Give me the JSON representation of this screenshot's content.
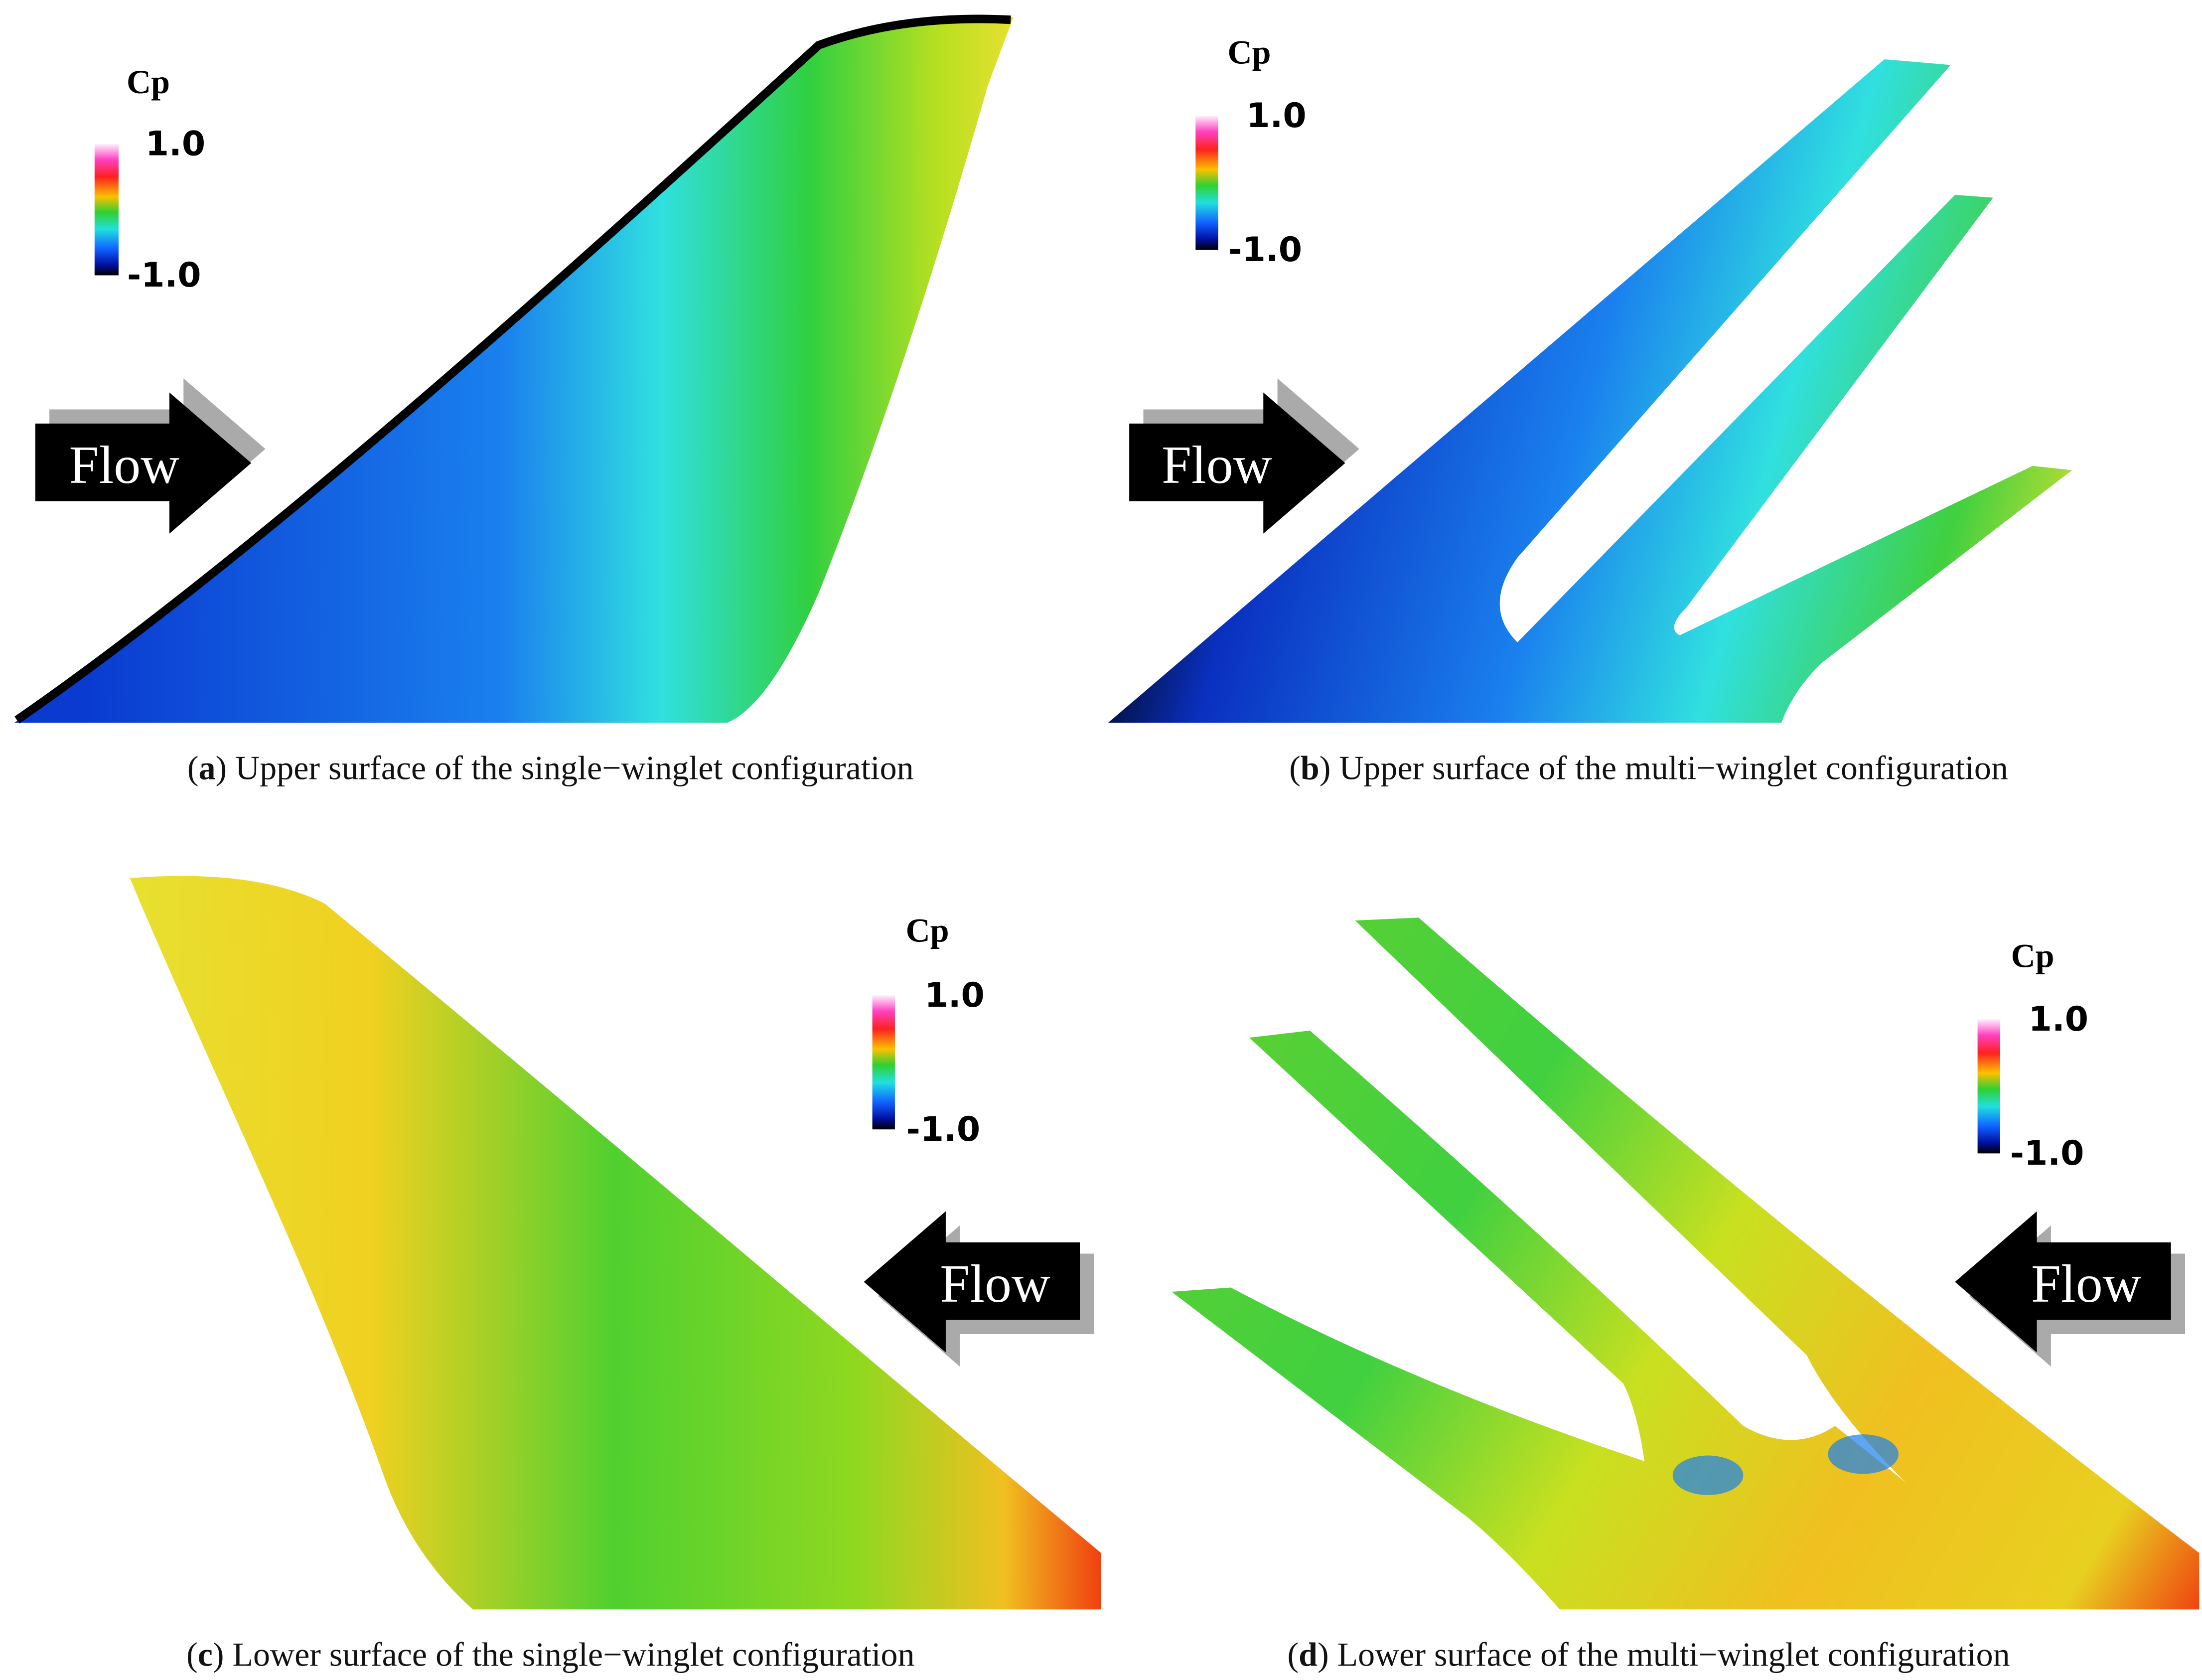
{
  "panels": [
    {
      "caption": {
        "open": "(",
        "label": "a",
        "text": ") Upper surface of the single−winglet configuration"
      },
      "colorbar": {
        "title": "Cp",
        "max": "1.0",
        "min": "-1.0"
      },
      "flow_label": "Flow"
    },
    {
      "caption": {
        "open": "(",
        "label": "b",
        "text": ") Upper surface of the multi−winglet configuration"
      },
      "colorbar": {
        "title": "Cp",
        "max": "1.0",
        "min": "-1.0"
      },
      "flow_label": "Flow"
    },
    {
      "caption": {
        "open": "(",
        "label": "c",
        "text": ") Lower surface of the single−winglet configuration"
      },
      "colorbar": {
        "title": "Cp",
        "max": "1.0",
        "min": "-1.0"
      },
      "flow_label": "Flow"
    },
    {
      "caption": {
        "open": "(",
        "label": "d",
        "text": ") Lower surface of the multi−winglet configuration"
      },
      "colorbar": {
        "title": "Cp",
        "max": "1.0",
        "min": "-1.0"
      },
      "flow_label": "Flow"
    }
  ]
}
